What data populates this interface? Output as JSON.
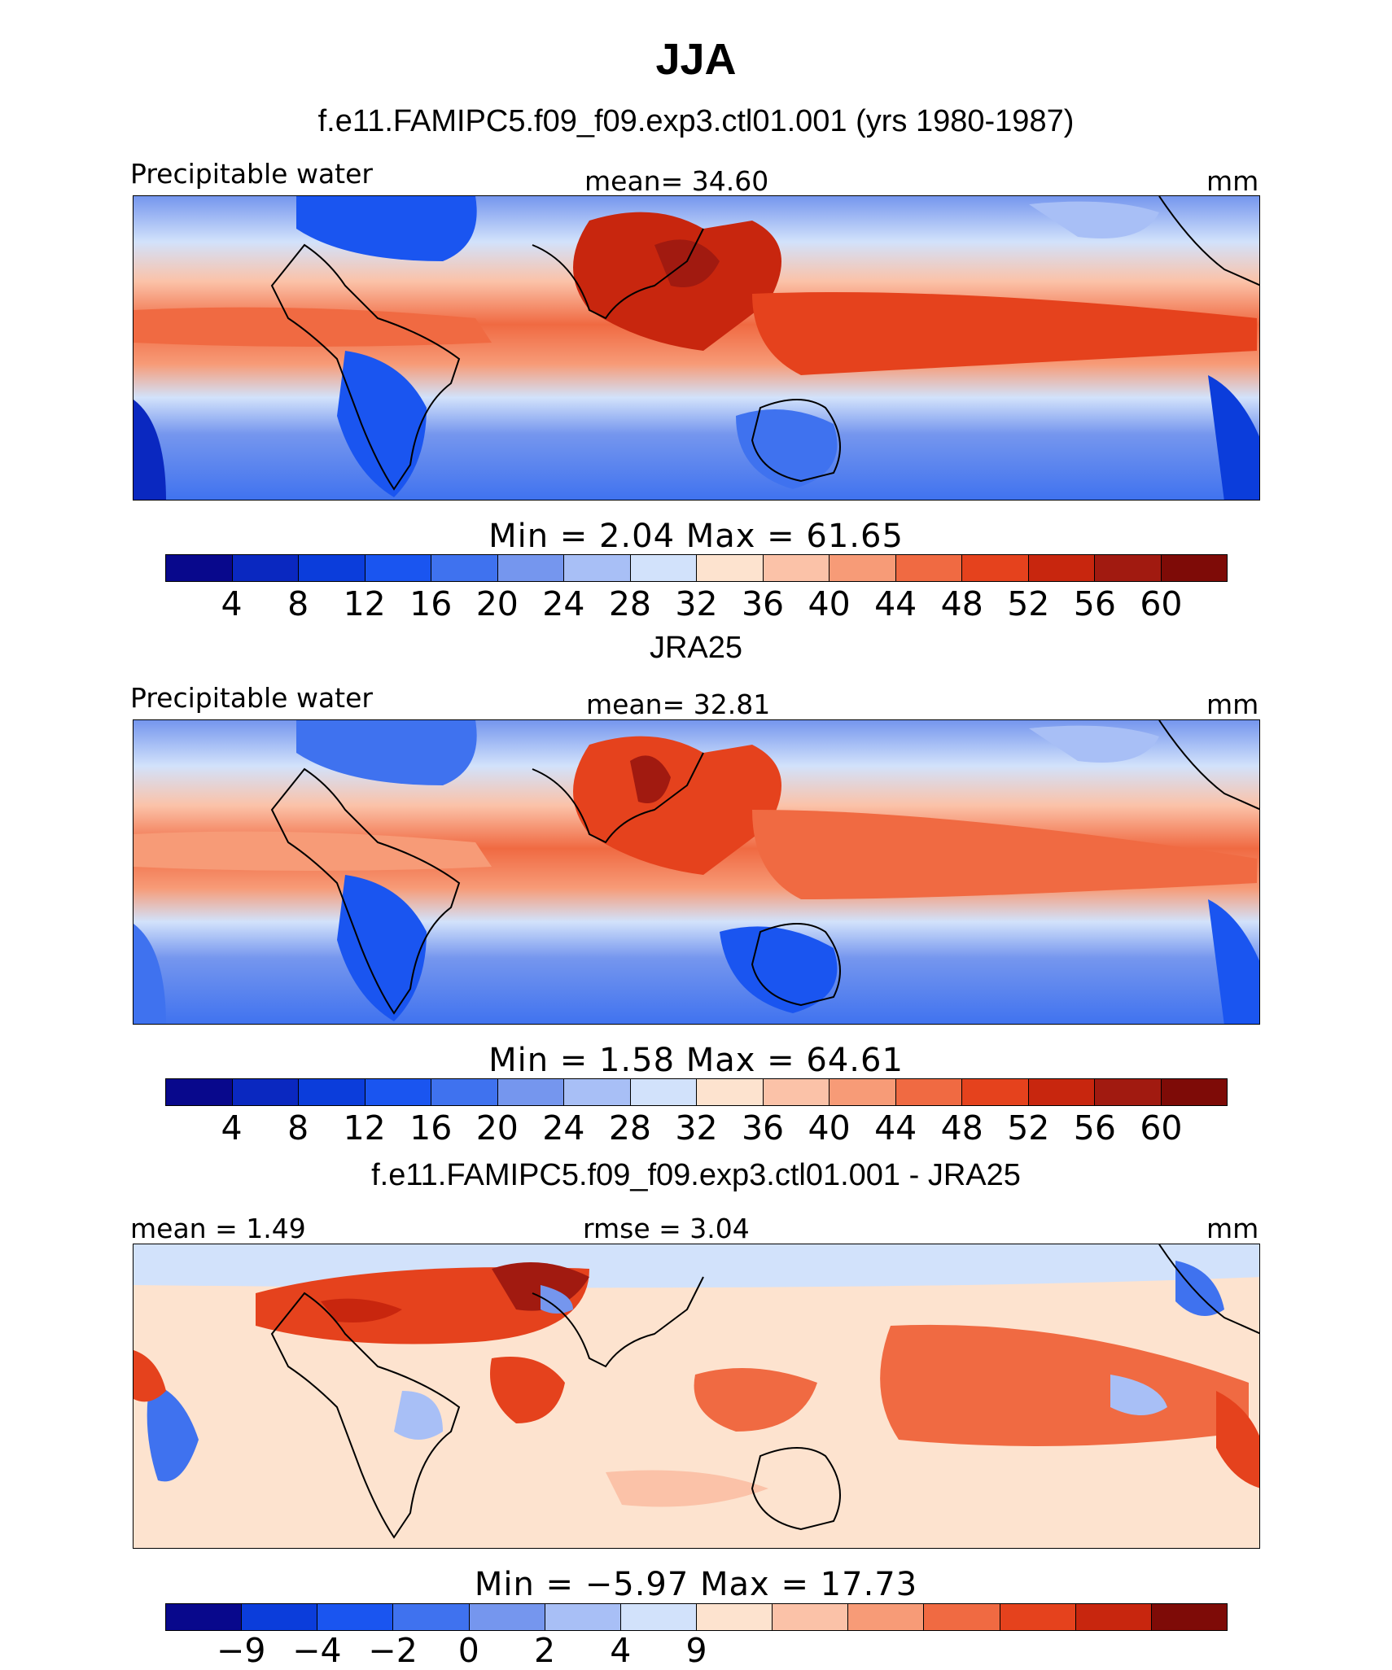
{
  "title": "JJA",
  "panels": [
    {
      "title": "f.e11.FAMIPC5.f09_f09.exp3.ctl01.001 (yrs 1980-1987)",
      "left_label": "Precipitable water",
      "center_label": "mean=   34.60",
      "right_label": "mm",
      "minmax": "Min  =    2.04  Max  =   61.65",
      "ticks": [
        "4",
        "8",
        "12",
        "16",
        "20",
        "24",
        "28",
        "32",
        "36",
        "40",
        "44",
        "48",
        "52",
        "56",
        "60"
      ],
      "colors": [
        "#08088c",
        "#0a28c0",
        "#0b3ddb",
        "#1a55f0",
        "#3f72ef",
        "#7596ee",
        "#a8bff6",
        "#d2e2fb",
        "#fde3cf",
        "#fbc2a8",
        "#f79b77",
        "#f06a42",
        "#e5421d",
        "#c8260e",
        "#a11a10",
        "#7e0b07"
      ]
    },
    {
      "title": "JRA25",
      "left_label": "Precipitable water",
      "center_label": "mean=   32.81",
      "right_label": "mm",
      "minmax": "Min  =    1.58  Max  =   64.61",
      "ticks": [
        "4",
        "8",
        "12",
        "16",
        "20",
        "24",
        "28",
        "32",
        "36",
        "40",
        "44",
        "48",
        "52",
        "56",
        "60"
      ],
      "colors": [
        "#08088c",
        "#0a28c0",
        "#0b3ddb",
        "#1a55f0",
        "#3f72ef",
        "#7596ee",
        "#a8bff6",
        "#d2e2fb",
        "#fde3cf",
        "#fbc2a8",
        "#f79b77",
        "#f06a42",
        "#e5421d",
        "#c8260e",
        "#a11a10",
        "#7e0b07"
      ]
    },
    {
      "title": "f.e11.FAMIPC5.f09_f09.exp3.ctl01.001 - JRA25",
      "left_label": "mean  =    1.49",
      "center_label": "rmse  =    3.04",
      "right_label": "mm",
      "minmax": "Min  =   −5.97  Max  =   17.73",
      "ticks": [
        "−9",
        "−4",
        "−2",
        "0",
        "2",
        "4",
        "9"
      ],
      "colors": [
        "#08088c",
        "#0b3ddb",
        "#1a55f0",
        "#3f72ef",
        "#7596ee",
        "#a8bff6",
        "#d2e2fb",
        "#fde3cf",
        "#fbc2a8",
        "#f79b77",
        "#f06a42",
        "#e5421d",
        "#c8260e",
        "#7e0b07"
      ]
    }
  ]
}
